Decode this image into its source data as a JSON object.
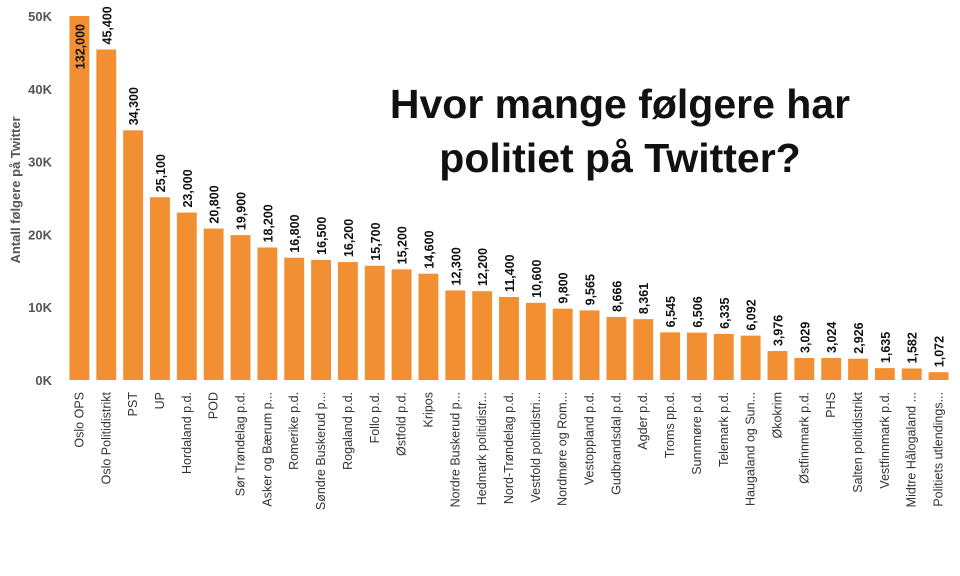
{
  "chart_data": {
    "type": "bar",
    "title_lines": [
      "Hvor mange følgere har",
      "politiet på Twitter?"
    ],
    "ylabel": "Antall følgere på Twitter",
    "ylim": [
      0,
      50000
    ],
    "yticks": [
      0,
      10000,
      20000,
      30000,
      40000,
      50000
    ],
    "ytick_labels": [
      "0K",
      "10K",
      "20K",
      "30K",
      "40K",
      "50K"
    ],
    "bar_color": "#f28f33",
    "categories": [
      "Oslo OPS",
      "Oslo Politidistrikt",
      "PST",
      "UP",
      "Hordaland p.d.",
      "POD",
      "Sør Trøndelag p.d.",
      "Asker og Bærum p...",
      "Romerike p.d.",
      "Søndre Buskerud p...",
      "Rogaland p.d.",
      "Follo p.d.",
      "Østfold p.d.",
      "Kripos",
      "Nordre Buskerud p...",
      "Hedmark politidistr...",
      "Nord-Trøndelag p.d.",
      "Vestfold politidistri...",
      "Nordmøre og Rom...",
      "Vestoppland p.d.",
      "Gudbrandsdal p.d.",
      "Agder p.d.",
      "Troms pp.d.",
      "Sunnmøre p.d.",
      "Telemark p.d.",
      "Haugaland og Sun...",
      "Økokrim",
      "Østfinnmark p.d.",
      "PHS",
      "Salten politidistrikt",
      "Vestfinnmark p.d.",
      "Midtre Hålogaland ...",
      "Politiets utlendings..."
    ],
    "values": [
      132000,
      45400,
      34300,
      25100,
      23000,
      20800,
      19900,
      18200,
      16800,
      16500,
      16200,
      15700,
      15200,
      14600,
      12300,
      12200,
      11400,
      10600,
      9800,
      9565,
      8666,
      8361,
      6545,
      6506,
      6335,
      6092,
      3976,
      3029,
      3024,
      2926,
      1635,
      1582,
      1072
    ],
    "value_labels": [
      "132,000",
      "45,400",
      "34,300",
      "25,100",
      "23,000",
      "20,800",
      "19,900",
      "18,200",
      "16,800",
      "16,500",
      "16,200",
      "15,700",
      "15,200",
      "14,600",
      "12,300",
      "12,200",
      "11,400",
      "10,600",
      "9,800",
      "9,565",
      "8,666",
      "8,361",
      "6,545",
      "6,506",
      "6,335",
      "6,092",
      "3,976",
      "3,029",
      "3,024",
      "2,926",
      "1,635",
      "1,582",
      "1,072"
    ]
  }
}
